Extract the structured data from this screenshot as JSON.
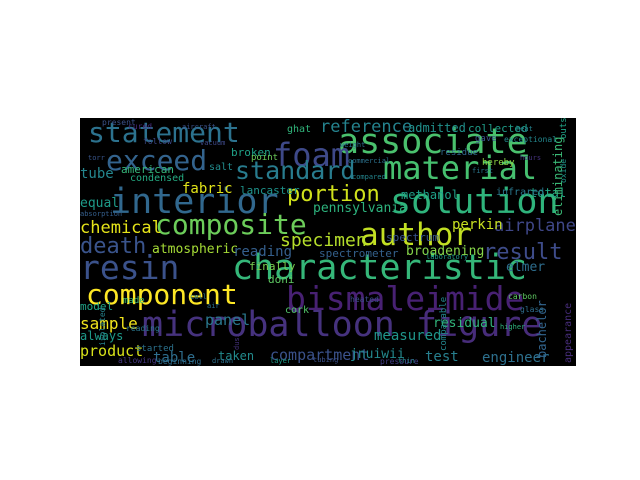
{
  "cloud": {
    "background": "#000000",
    "words": [
      {
        "text": "microballoon",
        "c": "#46327e"
      },
      {
        "text": "figure",
        "c": "#472c7a"
      },
      {
        "text": "characteristic",
        "c": "#35b779"
      },
      {
        "text": "bismaleimide",
        "c": "#482173"
      },
      {
        "text": "resin",
        "c": "#3b528b"
      },
      {
        "text": "component",
        "c": "#fde725"
      },
      {
        "text": "composite",
        "c": "#6ccd5a"
      },
      {
        "text": "author",
        "c": "#c2df23"
      },
      {
        "text": "interior",
        "c": "#31688e"
      },
      {
        "text": "solution",
        "c": "#2fb47c"
      },
      {
        "text": "associate",
        "c": "#4ac16d"
      },
      {
        "text": "foam",
        "c": "#3e4989"
      },
      {
        "text": "material",
        "c": "#46c06f"
      },
      {
        "text": "statement",
        "c": "#2c728e"
      },
      {
        "text": "exceed",
        "c": "#33638d"
      },
      {
        "text": "standard",
        "c": "#287c8e"
      },
      {
        "text": "portion",
        "c": "#d0e11c"
      },
      {
        "text": "result",
        "c": "#3e4c8a"
      },
      {
        "text": "death",
        "c": "#3a548c"
      },
      {
        "text": "specimen",
        "c": "#b5de2b"
      },
      {
        "text": "airplane",
        "c": "#3f4788"
      },
      {
        "text": "reference",
        "c": "#25838e"
      },
      {
        "text": "chemical",
        "c": "#e5e419"
      },
      {
        "text": "atmospheric",
        "c": "#a5db36"
      },
      {
        "text": "reading",
        "c": "#355f8d"
      },
      {
        "text": "panel",
        "c": "#2a788e"
      },
      {
        "text": "sample",
        "c": "#f1e51d"
      },
      {
        "text": "product",
        "c": "#d8e219"
      },
      {
        "text": "table",
        "c": "#2e6e8e"
      },
      {
        "text": "taken",
        "c": "#228b8d"
      },
      {
        "text": "compartment",
        "c": "#3b528b"
      },
      {
        "text": "test",
        "c": "#277f8e"
      },
      {
        "text": "engineer",
        "c": "#2d708e"
      },
      {
        "text": "measured",
        "c": "#1f968b"
      },
      {
        "text": "residual",
        "c": "#31b57b"
      },
      {
        "text": "fabric",
        "c": "#e2e418"
      },
      {
        "text": "tube",
        "c": "#24868e"
      },
      {
        "text": "equal",
        "c": "#1e9c89"
      },
      {
        "text": "pennsylvania",
        "c": "#2db27d"
      },
      {
        "text": "perkin",
        "c": "#c8e020"
      },
      {
        "text": "elmer",
        "c": "#2e6e8e"
      },
      {
        "text": "broadening",
        "c": "#86d549"
      },
      {
        "text": "methanol",
        "c": "#1fa088"
      },
      {
        "text": "lancaster",
        "c": "#1f948c"
      },
      {
        "text": "admitted",
        "c": "#21918c"
      },
      {
        "text": "broken",
        "c": "#1fa187"
      },
      {
        "text": "american",
        "c": "#35b779"
      },
      {
        "text": "salt",
        "c": "#228c8d"
      },
      {
        "text": "condensed",
        "c": "#25ab82"
      },
      {
        "text": "total",
        "c": "#22a785"
      },
      {
        "text": "spectrum",
        "c": "#39558c"
      },
      {
        "text": "finally",
        "c": "#7ad151"
      },
      {
        "text": "spectrometer",
        "c": "#34618d"
      },
      {
        "text": "doni",
        "c": "#5ec962"
      },
      {
        "text": "cork",
        "c": "#52c569"
      },
      {
        "text": "always",
        "c": "#1e9b8a"
      },
      {
        "text": "model",
        "c": "#20a386"
      },
      {
        "text": "made",
        "c": "#3dbc74"
      },
      {
        "text": "started",
        "c": "#2c728e"
      },
      {
        "text": "collected",
        "c": "#1f9e89"
      },
      {
        "text": "infrared",
        "c": "#2a788e"
      },
      {
        "text": "bachelor",
        "c": "#32658e"
      },
      {
        "text": "appearance",
        "c": "#472d7b"
      },
      {
        "text": "eliminating",
        "c": "#3aba76"
      },
      {
        "text": "ghat",
        "c": "#31b57b"
      },
      {
        "text": "jnuiwii",
        "c": "#23898e"
      },
      {
        "text": "gave",
        "c": "#3b528b"
      },
      {
        "text": "reading",
        "c": "#2a778e"
      },
      {
        "text": "allowing",
        "c": "#453781"
      },
      {
        "text": "beginning",
        "c": "#2e6d8e"
      },
      {
        "text": "point",
        "c": "#6ccd5a"
      },
      {
        "text": "tubing",
        "c": "#3b518b"
      },
      {
        "text": "residue",
        "c": "#31688e"
      },
      {
        "text": "isolated",
        "c": "#26828e"
      },
      {
        "text": "follow",
        "c": "#3e4989"
      },
      {
        "text": "exceptional",
        "c": "#23888e"
      },
      {
        "text": "present",
        "c": "#3b528b"
      },
      {
        "text": "drawn",
        "c": "#2d708e"
      },
      {
        "text": "air",
        "c": "#2c728e"
      },
      {
        "text": "torr",
        "c": "#39568c"
      },
      {
        "text": "dusi",
        "c": "#46327e"
      },
      {
        "text": "absorption",
        "c": "#355f8d"
      },
      {
        "text": "oxide",
        "c": "#1f968b"
      },
      {
        "text": "comparable",
        "c": "#24868e"
      },
      {
        "text": "thin",
        "c": "#228d8d"
      },
      {
        "text": "first",
        "c": "#2a778e"
      },
      {
        "text": "outside",
        "c": "#20a386"
      },
      {
        "text": "commercial",
        "c": "#2c728e"
      },
      {
        "text": "vacuum",
        "c": "#3e4989"
      },
      {
        "text": "laboratory",
        "c": "#1f998a"
      },
      {
        "text": "hours",
        "c": "#46337f"
      },
      {
        "text": "compared",
        "c": "#24868e"
      },
      {
        "text": "carbon",
        "c": "#5ec962"
      },
      {
        "text": "pressure",
        "c": "#433e85"
      },
      {
        "text": "weight",
        "c": "#2d708e"
      },
      {
        "text": "higher",
        "c": "#2db27d"
      },
      {
        "text": "heated",
        "c": "#3d4d8a"
      },
      {
        "text": "cell",
        "c": "#287c8e"
      },
      {
        "text": "hereby",
        "c": "#8fd744"
      },
      {
        "text": "aircraft",
        "c": "#3b528b"
      },
      {
        "text": "heat",
        "c": "#25838e"
      },
      {
        "text": "glass",
        "c": "#2e6e8e"
      },
      {
        "text": "cured",
        "c": "#472a7a"
      },
      {
        "text": "layer",
        "c": "#1e9c89"
      }
    ]
  }
}
